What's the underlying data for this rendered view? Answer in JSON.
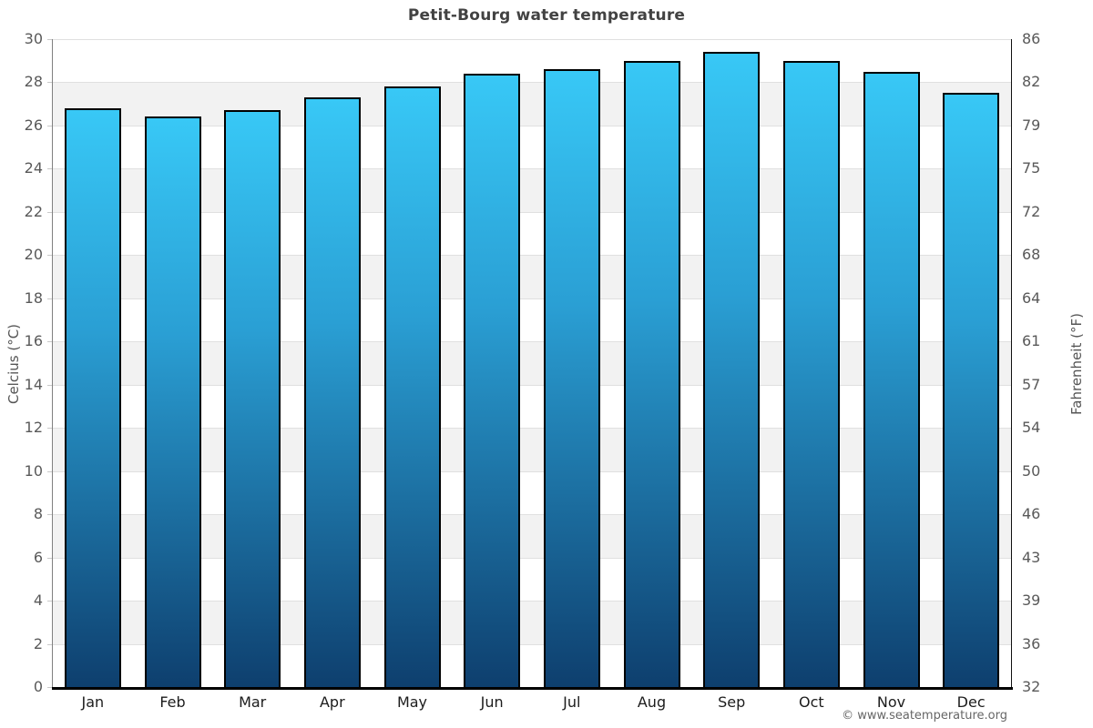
{
  "title": "Petit-Bourg water temperature",
  "copyright": "© www.seatemperature.org",
  "axes": {
    "left": {
      "label": "Celcius (°C)"
    },
    "right": {
      "label": "Fahrenheit (°F)"
    }
  },
  "colors": {
    "band_gray": "#f2f2f2",
    "gridline": "#e0e0e0",
    "bar_top": "#38c8f6",
    "bar_bottom": "#0e3f6e",
    "bar_border": "#000000",
    "title_text": "#424242",
    "tick_text": "#595959",
    "month_text": "#1c1c1c"
  },
  "chart_data": {
    "type": "bar",
    "title": "Petit-Bourg water temperature",
    "categories": [
      "Jan",
      "Feb",
      "Mar",
      "Apr",
      "May",
      "Jun",
      "Jul",
      "Aug",
      "Sep",
      "Oct",
      "Nov",
      "Dec"
    ],
    "series": [
      {
        "name": "Water temperature (°C)",
        "values": [
          26.8,
          26.4,
          26.7,
          27.3,
          27.8,
          28.4,
          28.6,
          29.0,
          29.4,
          29.0,
          28.5,
          27.5
        ]
      }
    ],
    "xlabel": "",
    "ylabel_left": "Celcius (°C)",
    "ylabel_right": "Fahrenheit (°F)",
    "ylim_c": [
      0,
      30
    ],
    "yticks_c": [
      30,
      28,
      26,
      24,
      22,
      20,
      18,
      16,
      14,
      12,
      10,
      8,
      6,
      4,
      2,
      0
    ],
    "yticks_f": [
      86,
      82,
      79,
      75,
      72,
      68,
      64,
      61,
      57,
      54,
      50,
      46,
      43,
      39,
      36,
      32
    ],
    "grid": "alternating-horizontal-bands",
    "legend": "none"
  }
}
